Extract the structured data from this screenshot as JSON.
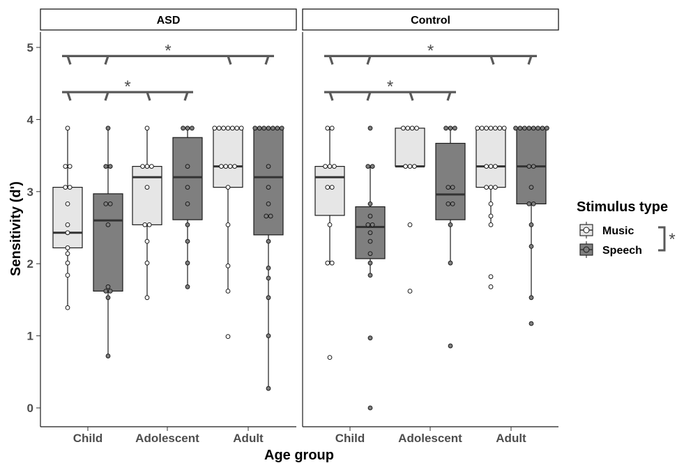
{
  "chart_data": {
    "type": "box",
    "xlabel": "Age group",
    "ylabel": "Sensitivity (d')",
    "ylim": [
      0,
      5
    ],
    "yticks": [
      0,
      1,
      2,
      3,
      4,
      5
    ],
    "categories": [
      "Child",
      "Adolescent",
      "Adult"
    ],
    "legend": {
      "title": "Stimulus type",
      "placement": "right",
      "entries": [
        {
          "name": "Music",
          "fill": "#e6e6e6",
          "point_fill": "#ffffff"
        },
        {
          "name": "Speech",
          "fill": "#7f7f7f",
          "point_fill": "#7f7f7f"
        }
      ],
      "significance": "*"
    },
    "colors": {
      "music": "#e6e6e6",
      "speech": "#7f7f7f",
      "bracket": "#595959",
      "median": "#333333"
    },
    "panels": [
      {
        "label": "ASD",
        "boxes": [
          {
            "group": "Child",
            "type": "Music",
            "min": 1.39,
            "q1": 2.22,
            "median": 2.43,
            "q3": 3.06,
            "max": 3.88,
            "points": [
              3.88,
              3.35,
              3.35,
              3.06,
              3.06,
              2.83,
              2.54,
              2.43,
              2.22,
              2.14,
              2.01,
              1.84,
              1.39
            ]
          },
          {
            "group": "Child",
            "type": "Speech",
            "min": 0.72,
            "q1": 1.62,
            "median": 2.6,
            "q3": 2.97,
            "max": 3.88,
            "points": [
              3.88,
              3.35,
              3.35,
              2.83,
              2.83,
              2.54,
              1.68,
              1.62,
              1.62,
              1.53,
              0.72
            ]
          },
          {
            "group": "Adolescent",
            "type": "Music",
            "min": 1.53,
            "q1": 2.54,
            "median": 3.2,
            "q3": 3.35,
            "max": 3.88,
            "points": [
              3.88,
              3.35,
              3.35,
              3.35,
              3.06,
              2.54,
              2.54,
              2.31,
              2.01,
              1.53
            ]
          },
          {
            "group": "Adolescent",
            "type": "Speech",
            "min": 1.68,
            "q1": 2.61,
            "median": 3.2,
            "q3": 3.75,
            "max": 3.88,
            "points": [
              3.88,
              3.88,
              3.88,
              3.35,
              3.06,
              2.83,
              2.54,
              2.31,
              2.01,
              1.68
            ]
          },
          {
            "group": "Adult",
            "type": "Music",
            "min": 1.62,
            "q1": 3.06,
            "median": 3.35,
            "q3": 3.88,
            "max": 3.88,
            "points": [
              3.88,
              3.88,
              3.88,
              3.88,
              3.88,
              3.88,
              3.88,
              3.35,
              3.35,
              3.35,
              3.35,
              3.06,
              2.54,
              1.97,
              1.62,
              0.99
            ]
          },
          {
            "group": "Adult",
            "type": "Speech",
            "min": 0.27,
            "q1": 2.4,
            "median": 3.2,
            "q3": 3.88,
            "max": 3.88,
            "points": [
              3.88,
              3.88,
              3.88,
              3.88,
              3.88,
              3.88,
              3.88,
              3.35,
              3.06,
              2.83,
              2.66,
              2.66,
              2.31,
              1.94,
              1.8,
              1.53,
              1.0,
              0.27
            ]
          }
        ],
        "brackets": [
          {
            "from": "Child",
            "to": "Adult",
            "y": 4.88,
            "label": "*"
          },
          {
            "from": "Child",
            "to": "Adolescent",
            "y": 4.38,
            "label": "*"
          }
        ]
      },
      {
        "label": "Control",
        "boxes": [
          {
            "group": "Child",
            "type": "Music",
            "min": 2.01,
            "q1": 2.67,
            "median": 3.2,
            "q3": 3.35,
            "max": 3.88,
            "points": [
              3.88,
              3.88,
              3.35,
              3.35,
              3.35,
              3.06,
              3.06,
              2.54,
              2.01,
              2.01,
              0.7
            ]
          },
          {
            "group": "Child",
            "type": "Speech",
            "min": 1.84,
            "q1": 2.07,
            "median": 2.51,
            "q3": 2.79,
            "max": 3.35,
            "points": [
              3.88,
              3.35,
              3.35,
              2.83,
              2.66,
              2.54,
              2.54,
              2.43,
              2.31,
              2.14,
              2.01,
              1.84,
              0.97,
              0.0
            ]
          },
          {
            "group": "Adolescent",
            "type": "Music",
            "min": 3.35,
            "q1": 3.35,
            "median": 3.35,
            "q3": 3.88,
            "max": 3.88,
            "points": [
              3.88,
              3.88,
              3.88,
              3.88,
              3.35,
              3.35,
              3.35,
              2.54,
              1.62
            ]
          },
          {
            "group": "Adolescent",
            "type": "Speech",
            "min": 2.01,
            "q1": 2.61,
            "median": 2.96,
            "q3": 3.67,
            "max": 3.88,
            "points": [
              3.88,
              3.88,
              3.88,
              3.06,
              3.06,
              2.83,
              2.83,
              2.54,
              2.01,
              0.86
            ]
          },
          {
            "group": "Adult",
            "type": "Music",
            "min": 2.54,
            "q1": 3.06,
            "median": 3.35,
            "q3": 3.88,
            "max": 3.88,
            "points": [
              3.88,
              3.88,
              3.88,
              3.88,
              3.88,
              3.88,
              3.88,
              3.35,
              3.35,
              3.35,
              3.06,
              3.06,
              3.06,
              2.83,
              2.66,
              2.54,
              1.82,
              1.68
            ]
          },
          {
            "group": "Adult",
            "type": "Speech",
            "min": 1.53,
            "q1": 2.83,
            "median": 3.35,
            "q3": 3.88,
            "max": 3.88,
            "points": [
              3.88,
              3.88,
              3.88,
              3.88,
              3.88,
              3.88,
              3.88,
              3.88,
              3.35,
              3.35,
              3.06,
              2.83,
              2.83,
              2.54,
              2.24,
              1.53,
              1.17
            ]
          }
        ],
        "brackets": [
          {
            "from": "Child",
            "to": "Adult",
            "y": 4.88,
            "label": "*"
          },
          {
            "from": "Child",
            "to": "Adolescent",
            "y": 4.38,
            "label": "*"
          }
        ]
      }
    ]
  }
}
